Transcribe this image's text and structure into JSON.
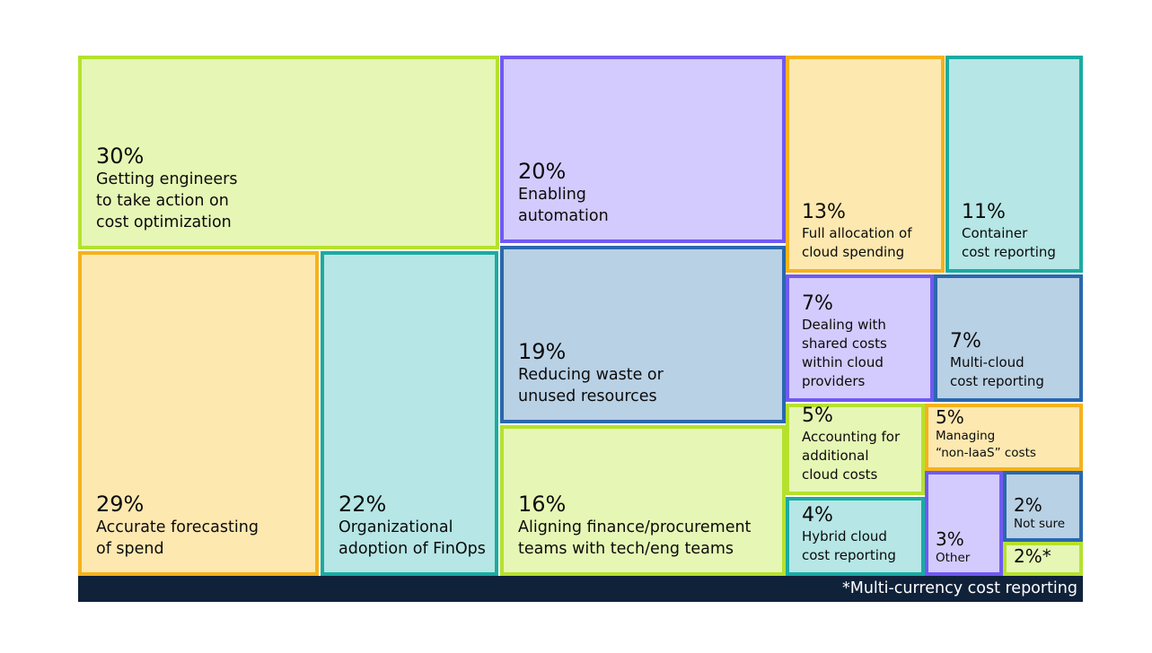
{
  "chart_data": {
    "type": "treemap",
    "items": [
      {
        "value": "30%",
        "label": "Getting engineers\nto take action on\ncost optimization",
        "fill": "#e6f6b5",
        "border": "#b5e12d"
      },
      {
        "value": "29%",
        "label": "Accurate forecasting\nof spend",
        "fill": "#fde8b0",
        "border": "#f6b21b"
      },
      {
        "value": "22%",
        "label": "Organizational\nadoption of FinOps",
        "fill": "#b6e6e5",
        "border": "#1aaba2"
      },
      {
        "value": "20%",
        "label": "Enabling\nautomation",
        "fill": "#d3cbfd",
        "border": "#7059f2"
      },
      {
        "value": "19%",
        "label": "Reducing waste or\nunused resources",
        "fill": "#b9d1e5",
        "border": "#2a68ad"
      },
      {
        "value": "16%",
        "label": "Aligning finance/procurement\nteams with tech/eng teams",
        "fill": "#e6f6b5",
        "border": "#b5e12d"
      },
      {
        "value": "13%",
        "label": "Full allocation of\ncloud spending",
        "fill": "#fde8b0",
        "border": "#f6b21b"
      },
      {
        "value": "11%",
        "label": "Container\ncost reporting",
        "fill": "#b6e6e5",
        "border": "#1aaba2"
      },
      {
        "value": "7%",
        "label": "Dealing with\nshared costs\nwithin cloud\nproviders",
        "fill": "#d3cbfd",
        "border": "#7059f2"
      },
      {
        "value": "7%",
        "label": "Multi-cloud\ncost reporting",
        "fill": "#b9d1e5",
        "border": "#2a68ad"
      },
      {
        "value": "5%",
        "label": "Accounting for\nadditional\ncloud costs",
        "fill": "#e6f6b5",
        "border": "#b5e12d"
      },
      {
        "value": "5%",
        "label": "Managing\n“non-IaaS” costs",
        "fill": "#fde8b0",
        "border": "#f6b21b"
      },
      {
        "value": "4%",
        "label": "Hybrid cloud\ncost reporting",
        "fill": "#b6e6e5",
        "border": "#1aaba2"
      },
      {
        "value": "3%",
        "label": "Other",
        "fill": "#d3cbfd",
        "border": "#7059f2"
      },
      {
        "value": "2%",
        "label": "Not sure",
        "fill": "#b9d1e5",
        "border": "#2a68ad"
      },
      {
        "value": "2%*",
        "label": "",
        "fill": "#e6f6b5",
        "border": "#b5e12d"
      }
    ],
    "footnote": "*Multi-currency cost reporting",
    "footnote_bg": "#10213a"
  }
}
